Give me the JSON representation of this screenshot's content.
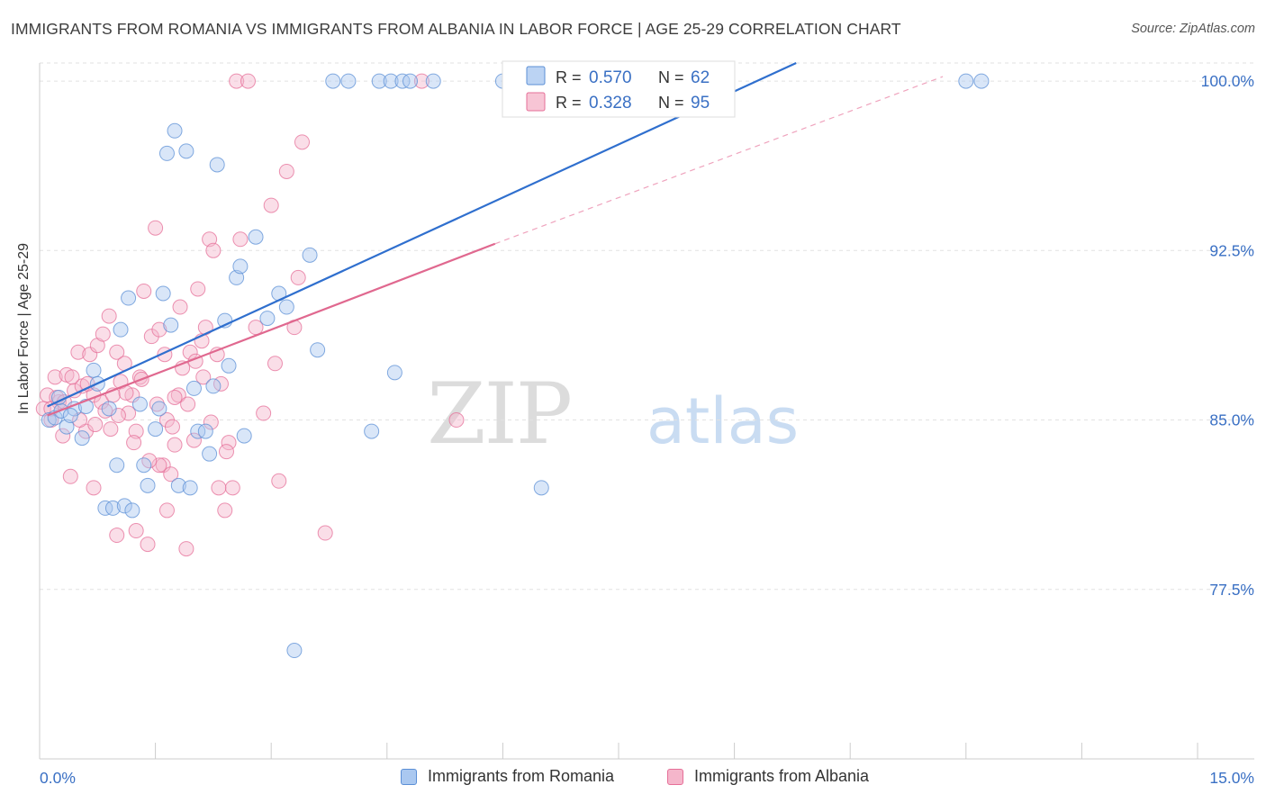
{
  "chart_data": {
    "type": "scatter",
    "title": "IMMIGRANTS FROM ROMANIA VS IMMIGRANTS FROM ALBANIA IN LABOR FORCE | AGE 25-29 CORRELATION CHART",
    "source": "Source: ZipAtlas.com",
    "ylabel": "In Labor Force | Age 25-29",
    "xlabel": "",
    "xlim": [
      0,
      15
    ],
    "ylim": [
      70,
      100.8
    ],
    "x_tick_labels": [
      "0.0%",
      "15.0%"
    ],
    "y_ticks": [
      77.5,
      85.0,
      92.5,
      100.0
    ],
    "y_tick_labels": [
      "77.5%",
      "85.0%",
      "92.5%",
      "100.0%"
    ],
    "grid": true,
    "watermark": {
      "part1": "ZIP",
      "part2": "atlas"
    },
    "legend_stats": [
      {
        "r_label": "R =",
        "r_value": "0.570",
        "n_label": "N =",
        "n_value": "62"
      },
      {
        "r_label": "R =",
        "r_value": "0.328",
        "n_label": "N =",
        "n_value": "95"
      }
    ],
    "series": [
      {
        "name": "Immigrants from Romania",
        "color": "#5b8fd6",
        "fill": "#aac8f0",
        "trend": {
          "x0": 0.1,
          "y0": 85.6,
          "x1": 9.8,
          "y1": 100.8,
          "dashed_to": null
        },
        "points": [
          [
            0.12,
            85.0
          ],
          [
            0.2,
            85.1
          ],
          [
            0.28,
            85.4
          ],
          [
            0.35,
            84.7
          ],
          [
            0.45,
            85.5
          ],
          [
            0.55,
            84.2
          ],
          [
            0.6,
            85.6
          ],
          [
            0.7,
            87.2
          ],
          [
            0.75,
            86.6
          ],
          [
            0.85,
            81.1
          ],
          [
            0.95,
            81.1
          ],
          [
            1.0,
            83.0
          ],
          [
            1.05,
            89.0
          ],
          [
            1.1,
            81.2
          ],
          [
            1.15,
            90.4
          ],
          [
            1.2,
            81.0
          ],
          [
            1.3,
            85.7
          ],
          [
            1.35,
            83.0
          ],
          [
            1.4,
            82.1
          ],
          [
            1.5,
            84.6
          ],
          [
            1.55,
            85.5
          ],
          [
            1.6,
            90.6
          ],
          [
            1.65,
            96.8
          ],
          [
            1.7,
            89.2
          ],
          [
            1.75,
            97.8
          ],
          [
            1.8,
            82.1
          ],
          [
            1.9,
            96.9
          ],
          [
            1.95,
            82.0
          ],
          [
            2.0,
            86.4
          ],
          [
            2.05,
            84.5
          ],
          [
            2.15,
            84.5
          ],
          [
            2.2,
            83.5
          ],
          [
            2.25,
            86.5
          ],
          [
            2.3,
            96.3
          ],
          [
            2.4,
            89.4
          ],
          [
            2.45,
            87.4
          ],
          [
            2.55,
            91.3
          ],
          [
            2.6,
            91.8
          ],
          [
            2.65,
            84.3
          ],
          [
            2.8,
            93.1
          ],
          [
            2.95,
            89.5
          ],
          [
            3.1,
            90.6
          ],
          [
            3.2,
            90.0
          ],
          [
            3.3,
            74.8
          ],
          [
            3.5,
            92.3
          ],
          [
            3.6,
            88.1
          ],
          [
            3.8,
            100.0
          ],
          [
            4.0,
            100.0
          ],
          [
            4.3,
            84.5
          ],
          [
            4.4,
            100.0
          ],
          [
            4.55,
            100.0
          ],
          [
            4.6,
            87.1
          ],
          [
            4.7,
            100.0
          ],
          [
            4.8,
            100.0
          ],
          [
            5.1,
            100.0
          ],
          [
            6.0,
            100.0
          ],
          [
            6.5,
            82.0
          ],
          [
            12.0,
            100.0
          ],
          [
            12.2,
            100.0
          ],
          [
            0.4,
            85.2
          ],
          [
            0.25,
            86.0
          ],
          [
            0.9,
            85.5
          ]
        ]
      },
      {
        "name": "Immigrants from Albania",
        "color": "#e66f98",
        "fill": "#f5b6cb",
        "trend": {
          "x0": 0.1,
          "y0": 85.2,
          "x1": 5.9,
          "y1": 92.8,
          "dashed_to": [
            11.7,
            100.2
          ]
        },
        "points": [
          [
            0.05,
            85.5
          ],
          [
            0.1,
            86.1
          ],
          [
            0.15,
            85.0
          ],
          [
            0.2,
            86.9
          ],
          [
            0.25,
            85.8
          ],
          [
            0.3,
            84.3
          ],
          [
            0.35,
            87.0
          ],
          [
            0.4,
            82.5
          ],
          [
            0.45,
            86.3
          ],
          [
            0.5,
            88.0
          ],
          [
            0.55,
            86.5
          ],
          [
            0.6,
            84.5
          ],
          [
            0.65,
            87.9
          ],
          [
            0.7,
            86.1
          ],
          [
            0.75,
            88.3
          ],
          [
            0.8,
            85.8
          ],
          [
            0.85,
            85.4
          ],
          [
            0.9,
            89.6
          ],
          [
            0.95,
            86.1
          ],
          [
            1.0,
            88.0
          ],
          [
            1.05,
            86.7
          ],
          [
            1.1,
            87.5
          ],
          [
            1.15,
            85.3
          ],
          [
            1.2,
            86.1
          ],
          [
            1.25,
            80.1
          ],
          [
            1.3,
            86.9
          ],
          [
            1.35,
            90.7
          ],
          [
            1.4,
            79.5
          ],
          [
            1.45,
            88.7
          ],
          [
            1.5,
            93.5
          ],
          [
            1.55,
            89.0
          ],
          [
            1.6,
            83.0
          ],
          [
            1.65,
            85.0
          ],
          [
            1.7,
            82.6
          ],
          [
            1.75,
            83.9
          ],
          [
            1.8,
            86.1
          ],
          [
            1.85,
            87.3
          ],
          [
            1.9,
            79.3
          ],
          [
            1.95,
            88.0
          ],
          [
            2.0,
            84.1
          ],
          [
            2.05,
            90.8
          ],
          [
            2.1,
            88.5
          ],
          [
            2.15,
            89.1
          ],
          [
            2.2,
            93.0
          ],
          [
            2.25,
            92.5
          ],
          [
            2.3,
            87.9
          ],
          [
            2.35,
            86.6
          ],
          [
            2.4,
            81.0
          ],
          [
            2.45,
            84.0
          ],
          [
            2.5,
            82.0
          ],
          [
            2.55,
            100.0
          ],
          [
            2.6,
            93.0
          ],
          [
            2.7,
            100.0
          ],
          [
            2.8,
            89.1
          ],
          [
            2.9,
            85.3
          ],
          [
            3.0,
            94.5
          ],
          [
            3.05,
            87.5
          ],
          [
            3.1,
            82.3
          ],
          [
            3.2,
            96.0
          ],
          [
            3.3,
            89.1
          ],
          [
            3.35,
            91.3
          ],
          [
            3.4,
            97.3
          ],
          [
            3.7,
            80.0
          ],
          [
            4.95,
            100.0
          ],
          [
            5.4,
            85.0
          ],
          [
            0.7,
            82.0
          ],
          [
            1.0,
            79.9
          ],
          [
            1.25,
            84.5
          ],
          [
            1.55,
            83.0
          ],
          [
            1.65,
            81.0
          ],
          [
            1.75,
            86.0
          ],
          [
            0.15,
            85.5
          ],
          [
            0.22,
            86.0
          ],
          [
            0.32,
            85.8
          ],
          [
            0.42,
            86.9
          ],
          [
            0.52,
            85.0
          ],
          [
            0.62,
            86.6
          ],
          [
            0.72,
            84.8
          ],
          [
            0.82,
            88.8
          ],
          [
            0.92,
            84.6
          ],
          [
            1.02,
            85.2
          ],
          [
            1.12,
            86.2
          ],
          [
            1.22,
            84.0
          ],
          [
            1.32,
            86.8
          ],
          [
            1.42,
            83.2
          ],
          [
            1.52,
            85.7
          ],
          [
            1.62,
            87.9
          ],
          [
            1.72,
            84.7
          ],
          [
            1.82,
            90.0
          ],
          [
            1.92,
            85.7
          ],
          [
            2.02,
            87.6
          ],
          [
            2.12,
            86.9
          ],
          [
            2.22,
            84.9
          ],
          [
            2.32,
            82.0
          ],
          [
            2.42,
            83.6
          ]
        ]
      }
    ]
  }
}
